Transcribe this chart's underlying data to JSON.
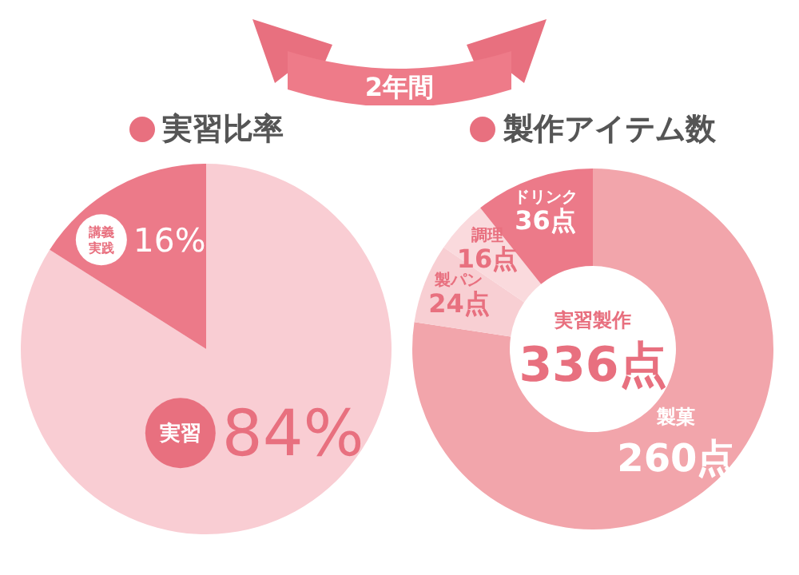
{
  "chart_data": [
    {
      "type": "other",
      "title": "2年間"
    },
    {
      "type": "pie",
      "title": "実習比率",
      "categories": [
        "実習",
        "講義実践"
      ],
      "values": [
        84,
        16
      ],
      "colors": [
        "#f9cdd3",
        "#ec7a89"
      ],
      "value_labels": [
        "84%",
        "16%"
      ]
    },
    {
      "type": "donut",
      "title": "製作アイテム数",
      "categories": [
        "製菓",
        "製パン",
        "調理",
        "ドリンク"
      ],
      "values": [
        260,
        24,
        16,
        36
      ],
      "colors": [
        "#f2a5ab",
        "#f8cfd3",
        "#fadadd",
        "#ec7a89"
      ],
      "value_labels": [
        "260点",
        "24点",
        "16点",
        "36点"
      ],
      "annotations": [
        "実習製作",
        "336点"
      ]
    }
  ]
}
